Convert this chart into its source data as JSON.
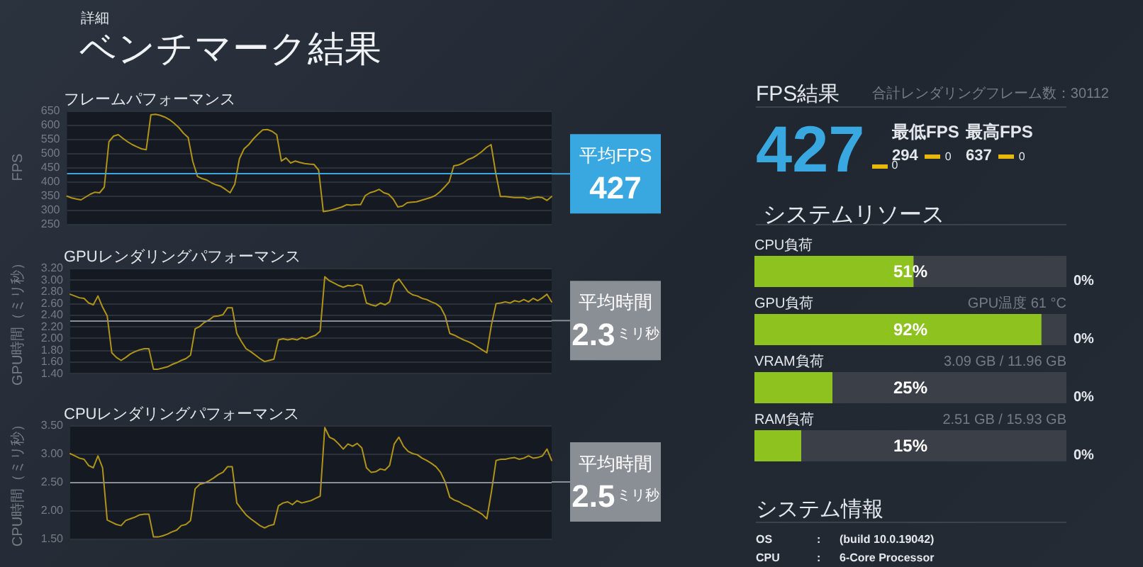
{
  "chart_data": [
    {
      "type": "other",
      "title": "ベンチマーク結果",
      "subtitle": "詳細"
    },
    {
      "type": "line",
      "title": "フレームパフォーマンス",
      "ylabel": "FPS",
      "categories": [
        null,
        null,
        null,
        null,
        null,
        null,
        null,
        null,
        null,
        null,
        null,
        null,
        null,
        null,
        null,
        null,
        null,
        null,
        null,
        null,
        null,
        null,
        null,
        null,
        null,
        null,
        null,
        null,
        null,
        null,
        null,
        null,
        null,
        null,
        null,
        null,
        null,
        null,
        null,
        null,
        null,
        null,
        null,
        null,
        null,
        null,
        null,
        null,
        null,
        null,
        null,
        null,
        null,
        null,
        null,
        null,
        null,
        null,
        null,
        null,
        null,
        null,
        null,
        null,
        null,
        null,
        null,
        null,
        null,
        null,
        null,
        null,
        null,
        null,
        null,
        null,
        null,
        null,
        null,
        null,
        null,
        null,
        null,
        null,
        null,
        null,
        null,
        null,
        null,
        null,
        null,
        null,
        null,
        null,
        null,
        null,
        null,
        null,
        null,
        null,
        null,
        null,
        null,
        null,
        null
      ],
      "values": [
        348,
        342,
        338,
        335,
        345,
        355,
        362,
        360,
        380,
        540,
        560,
        565,
        552,
        540,
        530,
        522,
        515,
        512,
        635,
        637,
        633,
        627,
        618,
        605,
        590,
        570,
        555,
        470,
        418,
        410,
        405,
        395,
        388,
        383,
        372,
        360,
        390,
        480,
        515,
        530,
        550,
        567,
        582,
        583,
        577,
        565,
        472,
        483,
        465,
        472,
        467,
        463,
        461,
        460,
        440,
        294,
        296,
        300,
        305,
        310,
        318,
        316,
        318,
        318,
        350,
        360,
        365,
        372,
        360,
        355,
        338,
        310,
        313,
        325,
        327,
        328,
        333,
        338,
        343,
        350,
        363,
        380,
        398,
        455,
        458,
        465,
        477,
        483,
        493,
        505,
        520,
        530,
        430,
        347,
        347,
        345,
        343,
        343,
        343,
        338,
        342,
        345,
        343,
        333,
        347
      ],
      "color": "#b09318",
      "ylim": [
        250,
        650
      ],
      "yticks": [
        250,
        300,
        350,
        400,
        450,
        500,
        550,
        600,
        650
      ],
      "grid": "y",
      "tick_labels": "y",
      "ref_lines": [
        {
          "axis": "y",
          "value": 427,
          "label": "平均FPS",
          "color": "#3aa8e0"
        }
      ],
      "annotations": [
        "427"
      ]
    },
    {
      "type": "line",
      "title": "GPUレンダリングパフォーマンス",
      "ylabel": "GPU時間（ミリ秒）",
      "categories": [
        null,
        null,
        null,
        null,
        null,
        null,
        null,
        null,
        null,
        null,
        null,
        null,
        null,
        null,
        null,
        null,
        null,
        null,
        null,
        null,
        null,
        null,
        null,
        null,
        null,
        null,
        null,
        null,
        null,
        null,
        null,
        null,
        null,
        null,
        null,
        null,
        null,
        null,
        null,
        null,
        null,
        null,
        null,
        null,
        null,
        null,
        null,
        null,
        null,
        null,
        null,
        null,
        null,
        null,
        null,
        null,
        null,
        null,
        null,
        null,
        null,
        null,
        null,
        null,
        null,
        null,
        null,
        null,
        null,
        null,
        null,
        null,
        null,
        null,
        null,
        null,
        null,
        null,
        null,
        null,
        null,
        null,
        null,
        null,
        null,
        null,
        null,
        null,
        null,
        null,
        null,
        null,
        null,
        null,
        null,
        null,
        null,
        null,
        null,
        null,
        null,
        null,
        null,
        null,
        null
      ],
      "values": [
        2.75,
        2.72,
        2.69,
        2.68,
        2.6,
        2.57,
        2.72,
        2.53,
        2.38,
        1.75,
        1.67,
        1.62,
        1.67,
        1.73,
        1.77,
        1.8,
        1.82,
        1.82,
        1.47,
        1.47,
        1.49,
        1.51,
        1.55,
        1.58,
        1.62,
        1.65,
        1.71,
        2.16,
        2.2,
        2.27,
        2.31,
        2.37,
        2.38,
        2.4,
        2.52,
        2.52,
        2.08,
        1.94,
        1.82,
        1.77,
        1.71,
        1.65,
        1.6,
        1.62,
        1.64,
        1.97,
        1.99,
        1.97,
        1.99,
        1.97,
        2.01,
        1.99,
        2.02,
        2.05,
        2.12,
        3.05,
        2.98,
        2.94,
        2.9,
        2.87,
        2.9,
        2.89,
        2.92,
        2.9,
        2.6,
        2.57,
        2.55,
        2.6,
        2.57,
        2.62,
        2.94,
        3.01,
        2.9,
        2.79,
        2.74,
        2.72,
        2.68,
        2.66,
        2.62,
        2.59,
        2.53,
        2.38,
        2.08,
        2.05,
        2.01,
        1.97,
        1.94,
        1.9,
        1.85,
        1.8,
        1.75,
        2.23,
        2.59,
        2.6,
        2.62,
        2.6,
        2.64,
        2.62,
        2.66,
        2.62,
        2.68,
        2.64,
        2.69,
        2.75,
        2.62
      ],
      "color": "#b09318",
      "ylim": [
        1.4,
        3.2
      ],
      "yticks": [
        {
          "value": 1.4,
          "label": "1.40"
        },
        {
          "value": 1.6,
          "label": "1.60"
        },
        {
          "value": 1.8,
          "label": "1.80"
        },
        {
          "value": 2.0,
          "label": "2.00"
        },
        {
          "value": 2.2,
          "label": "2.20"
        },
        {
          "value": 2.4,
          "label": "2.40"
        },
        {
          "value": 2.6,
          "label": "2.60"
        },
        {
          "value": 2.8,
          "label": "2.80"
        },
        {
          "value": 3.0,
          "label": "3.00"
        },
        {
          "value": 3.2,
          "label": "3.20"
        }
      ],
      "grid": "y",
      "tick_labels": "y",
      "ref_lines": [
        {
          "axis": "y",
          "value": 2.3,
          "label": "平均時間",
          "color": "#8a8e95"
        }
      ],
      "annotations": [
        "2.3",
        "ミリ秒"
      ]
    },
    {
      "type": "line",
      "title": "CPUレンダリングパフォーマンス",
      "ylabel": "CPU時間（ミリ秒）",
      "categories": [
        null,
        null,
        null,
        null,
        null,
        null,
        null,
        null,
        null,
        null,
        null,
        null,
        null,
        null,
        null,
        null,
        null,
        null,
        null,
        null,
        null,
        null,
        null,
        null,
        null,
        null,
        null,
        null,
        null,
        null,
        null,
        null,
        null,
        null,
        null,
        null,
        null,
        null,
        null,
        null,
        null,
        null,
        null,
        null,
        null,
        null,
        null,
        null,
        null,
        null,
        null,
        null,
        null,
        null,
        null,
        null,
        null,
        null,
        null,
        null,
        null,
        null,
        null,
        null,
        null,
        null,
        null,
        null,
        null,
        null,
        null,
        null,
        null,
        null,
        null,
        null,
        null,
        null,
        null,
        null,
        null,
        null,
        null,
        null,
        null,
        null,
        null,
        null,
        null,
        null,
        null,
        null,
        null,
        null,
        null,
        null,
        null,
        null,
        null,
        null,
        null,
        null,
        null,
        null,
        null
      ],
      "values": [
        3.0,
        2.96,
        2.92,
        2.9,
        2.79,
        2.75,
        2.96,
        2.75,
        1.83,
        1.79,
        1.75,
        1.73,
        1.82,
        1.85,
        1.88,
        1.92,
        1.93,
        1.93,
        1.53,
        1.53,
        1.55,
        1.58,
        1.62,
        1.65,
        1.73,
        1.75,
        1.82,
        2.38,
        2.46,
        2.48,
        2.52,
        2.57,
        2.63,
        2.67,
        2.77,
        2.77,
        2.13,
        2.02,
        1.92,
        1.85,
        1.79,
        1.73,
        1.69,
        1.73,
        1.75,
        2.08,
        2.13,
        2.15,
        2.1,
        2.17,
        2.13,
        2.15,
        2.17,
        2.21,
        2.25,
        3.46,
        3.29,
        3.25,
        3.17,
        3.08,
        3.17,
        3.13,
        3.18,
        3.1,
        2.75,
        2.67,
        2.68,
        2.73,
        2.71,
        2.79,
        3.17,
        3.29,
        3.13,
        3.04,
        3.0,
        2.98,
        2.92,
        2.88,
        2.83,
        2.77,
        2.67,
        2.5,
        2.23,
        2.18,
        2.15,
        2.1,
        2.07,
        2.02,
        1.98,
        1.93,
        1.85,
        2.33,
        2.88,
        2.9,
        2.9,
        2.92,
        2.93,
        2.9,
        2.92,
        2.96,
        2.92,
        2.93,
        2.96,
        3.08,
        2.88
      ],
      "color": "#b09318",
      "ylim": [
        1.5,
        3.5
      ],
      "yticks": [
        {
          "value": 1.5,
          "label": "1.50"
        },
        {
          "value": 2.0,
          "label": "2.00"
        },
        {
          "value": 2.5,
          "label": "2.50"
        },
        {
          "value": 3.0,
          "label": "3.00"
        },
        {
          "value": 3.5,
          "label": "3.50"
        }
      ],
      "grid": "y",
      "tick_labels": "y",
      "ref_lines": [
        {
          "axis": "y",
          "value": 2.5,
          "label": "平均時間",
          "color": "#8a8e95"
        }
      ],
      "annotations": [
        "2.5",
        "ミリ秒"
      ]
    },
    {
      "type": "other",
      "title": "FPS結果",
      "subtitle": "合計レンダリングフレーム数：30112",
      "color": "#3aa8e0",
      "annotations": [
        "427",
        "0",
        "最低FPS",
        "294",
        "0",
        "最高FPS",
        "637",
        "0"
      ]
    },
    {
      "type": "bar",
      "title": "システムリソース",
      "orientation": "horizontal",
      "categories": [
        "CPU負荷",
        "GPU負荷",
        "VRAM負荷",
        "RAM負荷"
      ],
      "values": [
        51,
        92,
        25,
        15
      ],
      "value_labels": [
        "51%",
        "92%",
        "25%",
        "15%"
      ],
      "color": "#8dc21f",
      "xlim": [
        0,
        100
      ],
      "tick_labels": "y",
      "annotations": [
        "0%",
        "GPU温度 61 °C",
        "0%",
        "3.09 GB / 11.96 GB",
        "0%",
        "2.51 GB / 15.93 GB",
        "0%"
      ]
    },
    {
      "type": "other",
      "title": "システム情報",
      "annotations": [
        "OS",
        ":",
        "(build 10.0.19042)",
        "CPU",
        ":",
        "6-Core Processor"
      ]
    }
  ]
}
